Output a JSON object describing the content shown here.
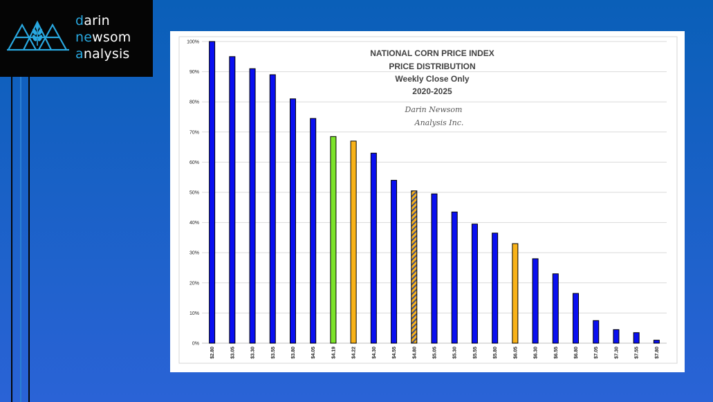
{
  "logo": {
    "lines": [
      {
        "first": "d",
        "rest": "arin"
      },
      {
        "first": "ne",
        "rest": "wsom"
      },
      {
        "first": "a",
        "rest": "nalysis"
      }
    ],
    "accent_color": "#29A9E1",
    "icon": "mountain-wheat-icon"
  },
  "chart_data": {
    "type": "bar",
    "title_lines": [
      "NATIONAL CORN PRICE INDEX",
      "PRICE DISTRIBUTION",
      "Weekly Close Only",
      "2020-2025"
    ],
    "signature_lines": [
      "Darin Newsom",
      "Analysis Inc."
    ],
    "categories": [
      "$2.80",
      "$3.05",
      "$3.30",
      "$3.55",
      "$3.80",
      "$4.05",
      "$4.19",
      "$4.22",
      "$4.30",
      "$4.55",
      "$4.80",
      "$5.05",
      "$5.30",
      "$5.55",
      "$5.80",
      "$6.05",
      "$6.30",
      "$6.55",
      "$6.80",
      "$7.05",
      "$7.30",
      "$7.55",
      "$7.80"
    ],
    "values": [
      100,
      95,
      91,
      89,
      81,
      74.5,
      68.5,
      67,
      63,
      54,
      50.5,
      49.5,
      43.5,
      39.5,
      36.5,
      33,
      28,
      23,
      16.5,
      7.5,
      4.5,
      3.5,
      1
    ],
    "bar_styles": [
      "blue",
      "blue",
      "blue",
      "blue",
      "blue",
      "blue",
      "green",
      "orange",
      "blue",
      "blue",
      "hatched",
      "blue",
      "blue",
      "blue",
      "blue",
      "orange",
      "blue",
      "blue",
      "blue",
      "blue",
      "blue",
      "blue",
      "blue"
    ],
    "colors": {
      "blue": "#0A10F0",
      "green": "#7CE32A",
      "orange": "#F8B219",
      "hatch_stripe": "#3F4E86"
    },
    "yticks": [
      "0%",
      "10%",
      "20%",
      "30%",
      "40%",
      "50%",
      "60%",
      "70%",
      "80%",
      "90%",
      "100%"
    ],
    "ylim": [
      0,
      100
    ],
    "grid": true,
    "legend": "none"
  }
}
